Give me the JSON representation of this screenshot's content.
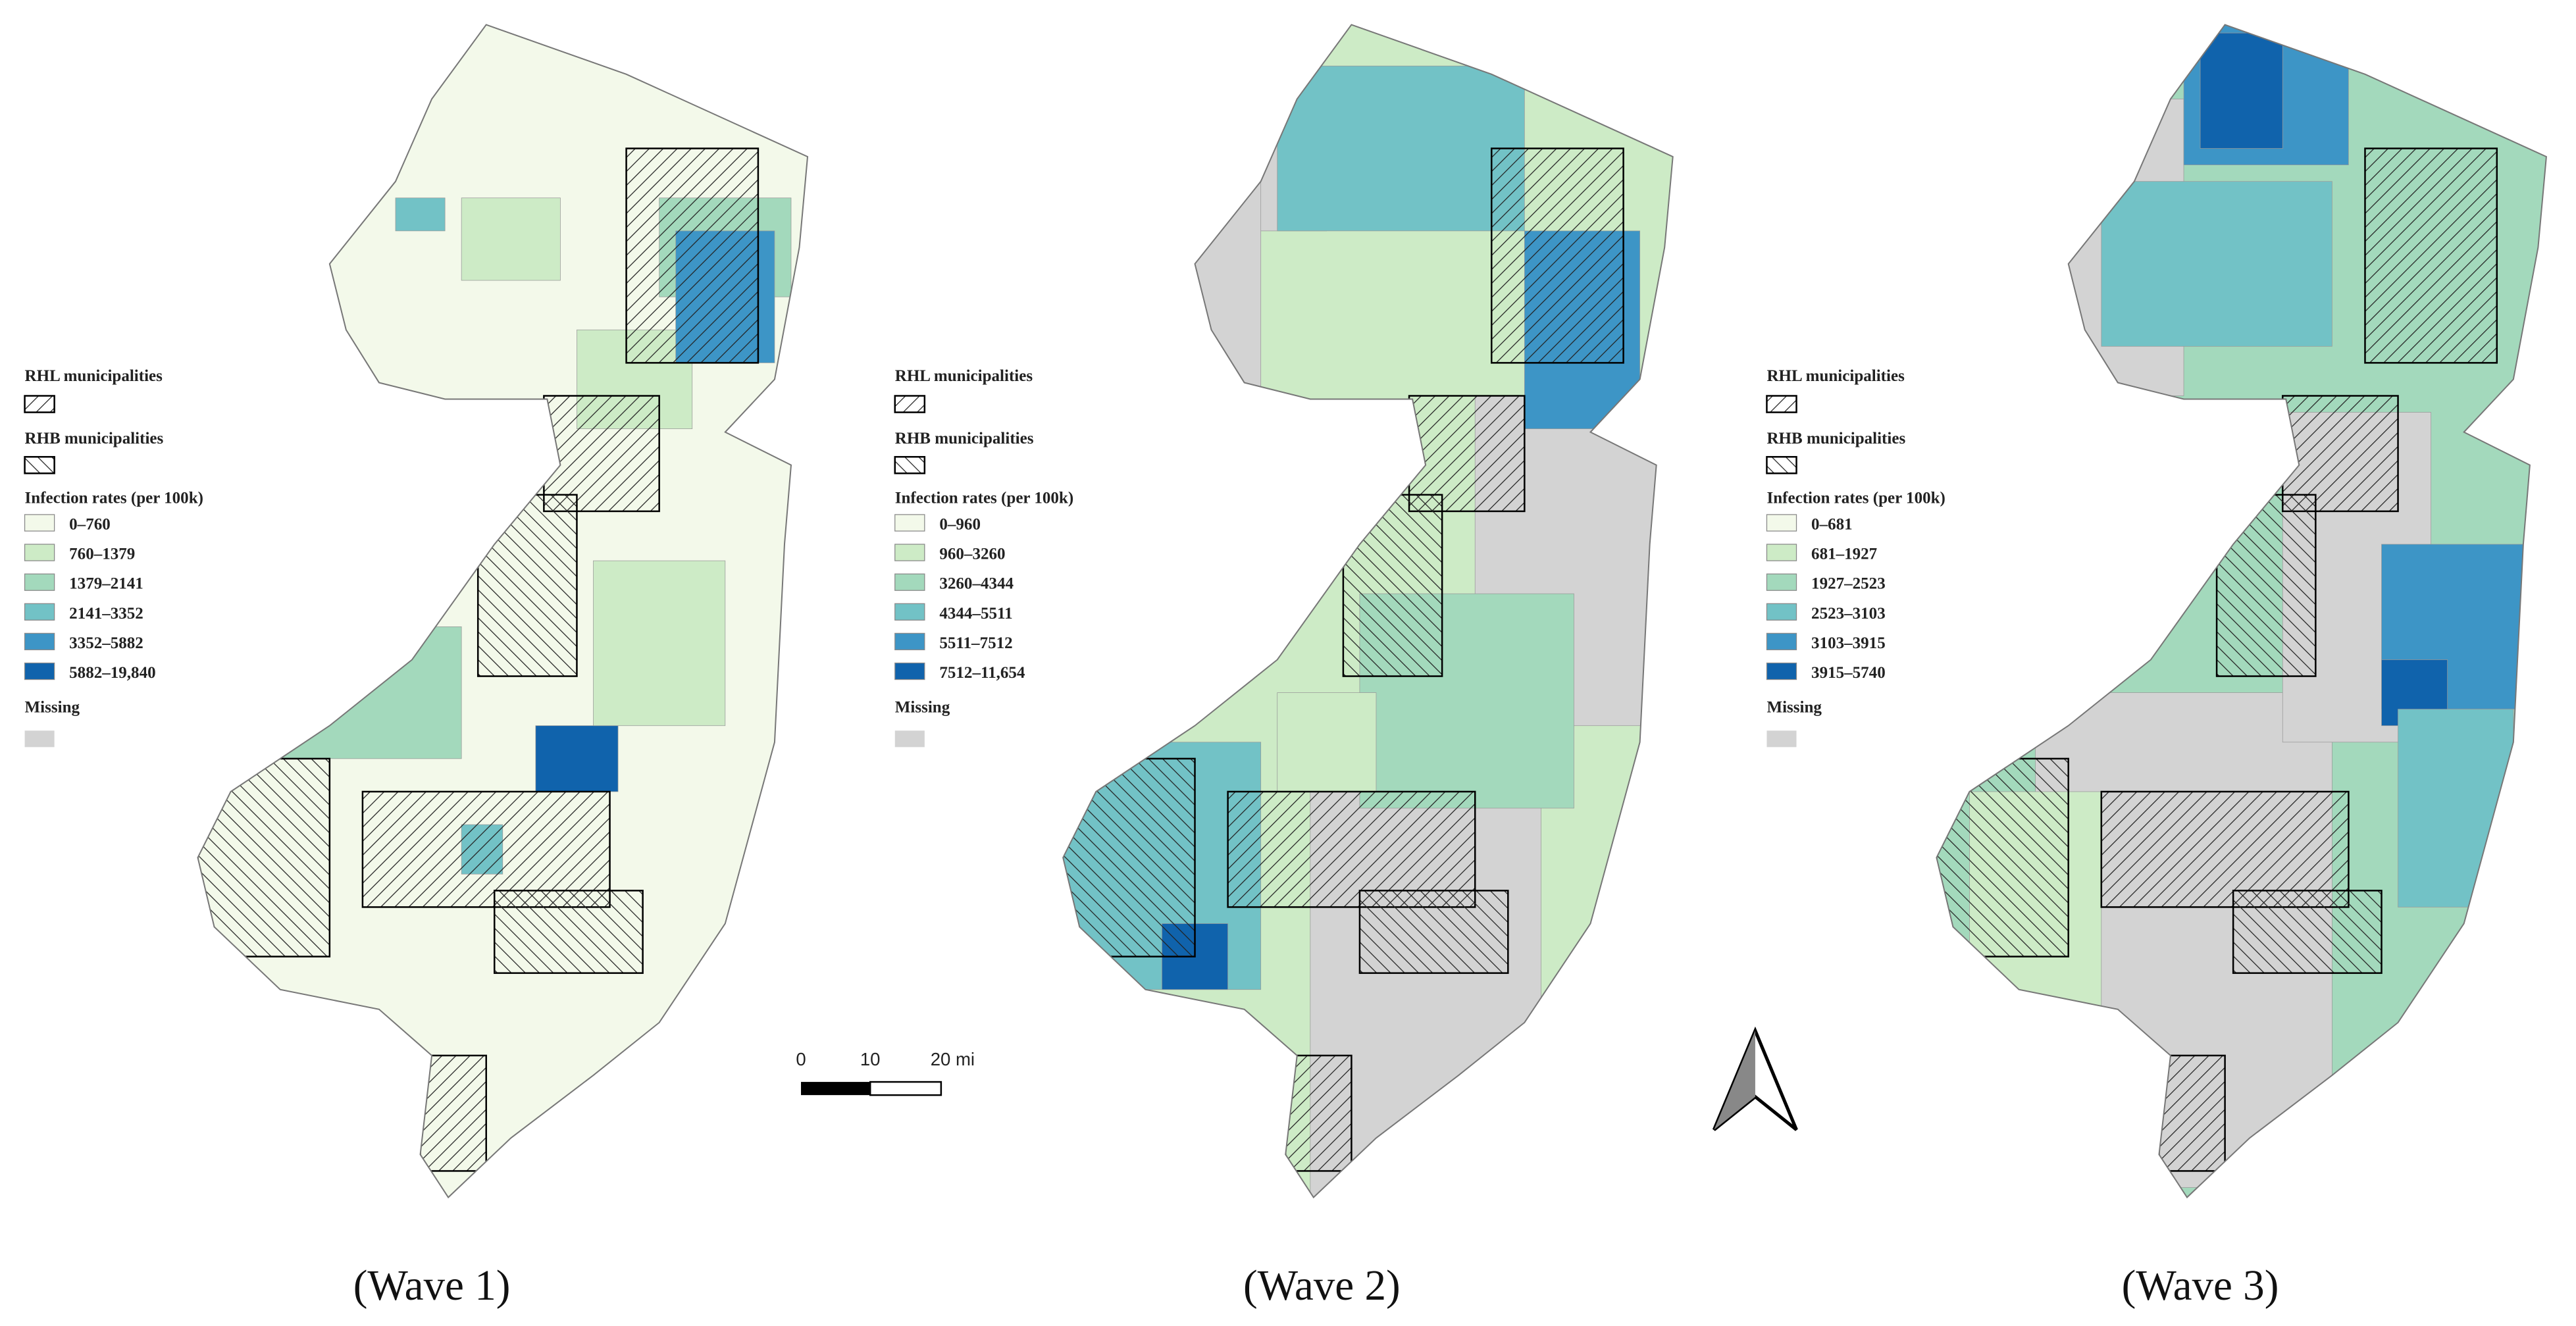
{
  "maps": [
    {
      "caption": "(Wave 1)",
      "legend": {
        "rhl": "RHL municipalities",
        "rhb": "RHB municipalities",
        "title": "Infection rates (per 100k)",
        "classes": [
          "0–760",
          "760–1379",
          "1379–2141",
          "2141–3352",
          "3352–5882",
          "5882–19,840"
        ],
        "missing": "Missing"
      }
    },
    {
      "caption": "(Wave 2)",
      "legend": {
        "rhl": "RHL municipalities",
        "rhb": "RHB municipalities",
        "title": "Infection rates (per 100k)",
        "classes": [
          "0–960",
          "960–3260",
          "3260–4344",
          "4344–5511",
          "5511–7512",
          "7512–11,654"
        ],
        "missing": "Missing"
      }
    },
    {
      "caption": "(Wave 3)",
      "legend": {
        "rhl": "RHL municipalities",
        "rhb": "RHB municipalities",
        "title": "Infection rates (per 100k)",
        "classes": [
          "0–681",
          "681–1927",
          "1927–2523",
          "2523–3103",
          "3103–3915",
          "3915–5740"
        ],
        "missing": "Missing"
      }
    }
  ],
  "class_colors": [
    "#f3f9ea",
    "#cdebc6",
    "#a3d9bc",
    "#72c2c6",
    "#3d95c6",
    "#1063ac"
  ],
  "missing_color": "#d3d3d3",
  "scale_bar": {
    "labels": [
      "0",
      "10",
      "20 mi"
    ]
  }
}
